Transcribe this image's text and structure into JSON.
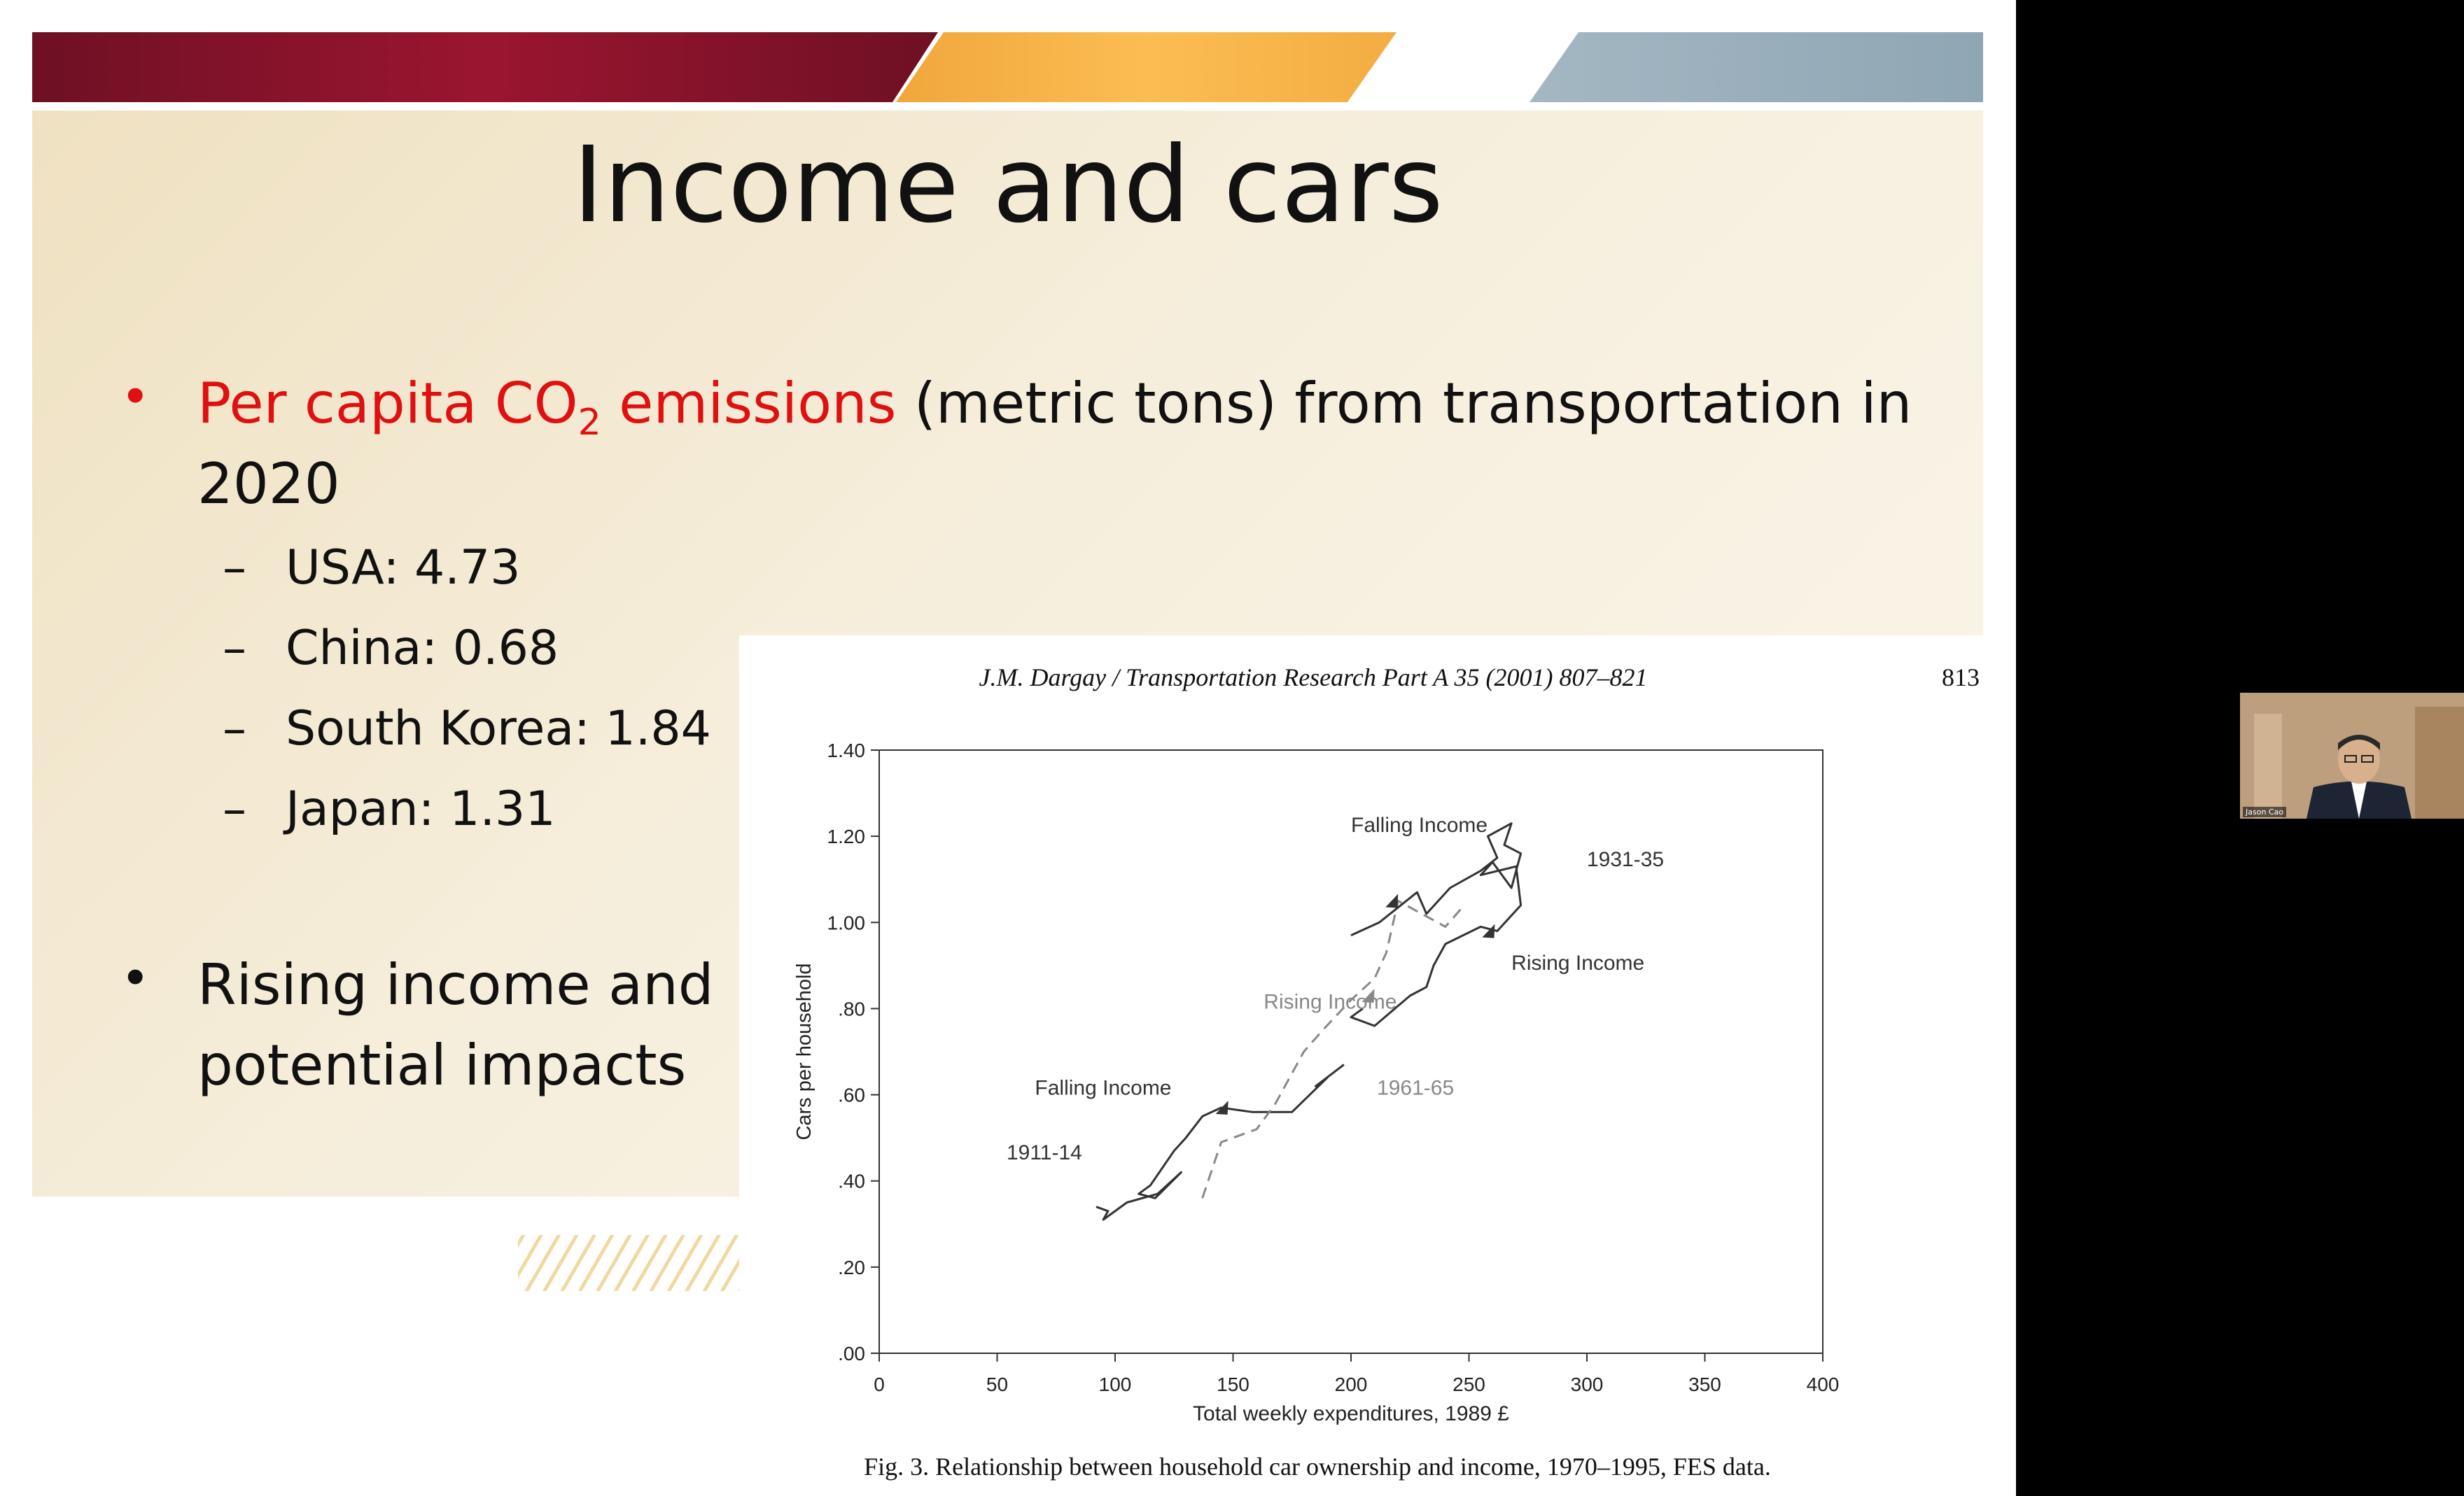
{
  "slide": {
    "title": "Income and cars",
    "bullet1": {
      "red_before": "Per capita CO",
      "red_sub": "2",
      "red_after": " emissions",
      "rest_line1": " (metric tons) from transportation in",
      "line2": "2020"
    },
    "subitems": [
      "USA: 4.73",
      "China: 0.68",
      "South Korea: 1.84",
      "Japan: 1.31"
    ],
    "bullet2_lines": [
      "Rising income and",
      "potential impacts"
    ]
  },
  "paper": {
    "header": "J.M. Dargay / Transportation Research Part A 35 (2001) 807–821",
    "page_number": "813",
    "caption": "Fig. 3. Relationship between household car ownership and income, 1970–1995, FES data."
  },
  "chart_data": {
    "type": "line",
    "xlabel": "Total weekly expenditures, 1989 £",
    "ylabel": "Cars per household",
    "xlim": [
      0,
      400
    ],
    "ylim": [
      0,
      1.4
    ],
    "x_ticks": [
      0,
      50,
      100,
      150,
      200,
      250,
      300,
      350,
      400
    ],
    "x_tick_labels": [
      "0",
      "50",
      "100",
      "150",
      "200",
      "250",
      "300",
      "350",
      "400"
    ],
    "y_ticks": [
      0,
      0.2,
      0.4,
      0.6,
      0.8,
      1.0,
      1.2,
      1.4
    ],
    "y_tick_labels": [
      ".00",
      ".20",
      ".40",
      ".60",
      ".80",
      "1.00",
      "1.20",
      "1.40"
    ],
    "series": [
      {
        "style": "solid",
        "color": "#333333",
        "x": [
          92,
          97,
          95,
          105,
          118,
          128,
          117,
          110,
          115,
          125,
          130,
          137,
          145,
          158,
          175,
          190,
          185,
          197
        ],
        "y": [
          0.34,
          0.33,
          0.31,
          0.35,
          0.37,
          0.42,
          0.36,
          0.37,
          0.39,
          0.47,
          0.5,
          0.55,
          0.57,
          0.56,
          0.56,
          0.64,
          0.62,
          0.67
        ]
      },
      {
        "style": "dashed",
        "color": "#888888",
        "x": [
          137,
          145,
          160,
          168,
          180,
          188,
          200,
          210,
          215,
          220,
          230,
          240,
          248
        ],
        "y": [
          0.36,
          0.49,
          0.52,
          0.58,
          0.7,
          0.75,
          0.82,
          0.87,
          0.93,
          1.05,
          1.02,
          0.99,
          1.04
        ]
      },
      {
        "style": "solid",
        "color": "#333333",
        "x": [
          200,
          212,
          228,
          232,
          242,
          255,
          262,
          258,
          268,
          265,
          272,
          268,
          260,
          255,
          270,
          272,
          262,
          255,
          240,
          235,
          232,
          225,
          210,
          200,
          205
        ],
        "y": [
          0.97,
          1.0,
          1.07,
          1.02,
          1.08,
          1.12,
          1.15,
          1.2,
          1.23,
          1.18,
          1.16,
          1.08,
          1.14,
          1.11,
          1.13,
          1.04,
          0.98,
          0.99,
          0.95,
          0.9,
          0.85,
          0.83,
          0.76,
          0.78,
          0.8
        ]
      }
    ],
    "annotations": [
      {
        "text": "Falling Income",
        "x": 200,
        "y": 1.21,
        "color": "#333333"
      },
      {
        "text": "1931-35",
        "x": 300,
        "y": 1.13,
        "color": "#333333"
      },
      {
        "text": "Rising Income",
        "x": 268,
        "y": 0.89,
        "color": "#333333"
      },
      {
        "text": "Rising Income",
        "x": 163,
        "y": 0.8,
        "color": "#888888"
      },
      {
        "text": "1961-65",
        "x": 211,
        "y": 0.6,
        "color": "#888888"
      },
      {
        "text": "Falling Income",
        "x": 66,
        "y": 0.6,
        "color": "#333333"
      },
      {
        "text": "1911-14",
        "x": 54,
        "y": 0.45,
        "color": "#333333"
      }
    ],
    "arrows": [
      {
        "series": 2,
        "x": 217,
        "y": 1.05
      },
      {
        "series": 2,
        "x": 258,
        "y": 0.98
      },
      {
        "series": 1,
        "x": 207,
        "y": 0.83
      },
      {
        "series": 0,
        "x": 145,
        "y": 0.57
      }
    ]
  },
  "video": {
    "participant_name": "Jason Cao"
  }
}
